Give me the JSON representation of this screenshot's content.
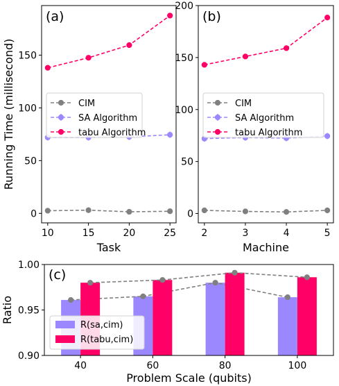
{
  "chart_data": [
    {
      "type": "line",
      "panel_label": "(a)",
      "xlabel": "Task",
      "ylabel": "Running Time (millisecond)",
      "x": [
        10,
        15,
        20,
        25
      ],
      "xlim": [
        9.25,
        25.75
      ],
      "ylim": [
        -9,
        197
      ],
      "yticks": [
        0,
        50,
        100,
        150
      ],
      "series": [
        {
          "name": "CIM",
          "values": [
            2.5,
            3,
            1.5,
            2
          ],
          "color": "#808080"
        },
        {
          "name": "SA Algorithm",
          "values": [
            72,
            72,
            72.5,
            74.5
          ],
          "color": "#9b88ff"
        },
        {
          "name": "tabu Algorithm",
          "values": [
            138,
            147.5,
            159.5,
            187.5
          ],
          "color": "#ff0066"
        }
      ],
      "legend": "center-left",
      "grid": false
    },
    {
      "type": "line",
      "panel_label": "(b)",
      "xlabel": "Machine",
      "ylabel": "",
      "x": [
        2,
        3,
        4,
        5
      ],
      "xlim": [
        1.85,
        5.15
      ],
      "ylim": [
        -9,
        200
      ],
      "yticks": [
        0,
        50,
        100,
        150,
        200
      ],
      "series": [
        {
          "name": "CIM",
          "values": [
            3,
            2,
            1.5,
            3
          ],
          "color": "#808080"
        },
        {
          "name": "SA Algorithm",
          "values": [
            72,
            73,
            72.5,
            74.5
          ],
          "color": "#9b88ff"
        },
        {
          "name": "tabu Algorithm",
          "values": [
            143,
            151,
            159,
            188.5
          ],
          "color": "#ff0066"
        }
      ],
      "legend": "center-left",
      "grid": false
    },
    {
      "type": "bar",
      "panel_label": "(c)",
      "xlabel": "Problem Scale (qubits)",
      "ylabel": "Ratio",
      "categories": [
        "40",
        "60",
        "80",
        "100"
      ],
      "ylim": [
        0.9,
        1.0
      ],
      "yticks": [
        "0.90",
        "0.95",
        "1.00"
      ],
      "series": [
        {
          "name": "R(sa,cim)",
          "values": [
            0.961,
            0.965,
            0.98,
            0.964
          ],
          "color": "#9b88ff"
        },
        {
          "name": "R(tabu,cim)",
          "values": [
            0.98,
            0.983,
            0.991,
            0.986
          ],
          "color": "#ff0066"
        }
      ],
      "legend": "lower-left",
      "grid": false
    }
  ]
}
